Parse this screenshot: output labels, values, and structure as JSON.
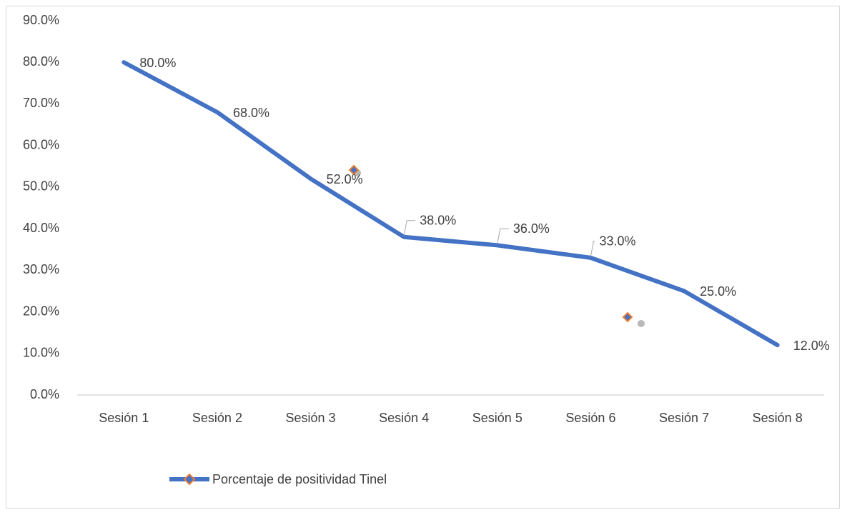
{
  "chart_data": {
    "type": "line",
    "categories": [
      "Sesión 1",
      "Sesión 2",
      "Sesión 3",
      "Sesión 4",
      "Sesión 5",
      "Sesión 6",
      "Sesión 7",
      "Sesión 8"
    ],
    "series": [
      {
        "name": "Porcentaje de positividad Tinel",
        "color": "#4472c4",
        "values": [
          80,
          68,
          52,
          38,
          36,
          33,
          25,
          12
        ],
        "value_labels": [
          "80.0%",
          "68.0%",
          "52.0%",
          "38.0%",
          "36.0%",
          "33.0%",
          "25.0%",
          "12.0%"
        ]
      }
    ],
    "ylim": [
      0,
      90
    ],
    "yticks": [
      {
        "value": 0,
        "label": "0.0%"
      },
      {
        "value": 10,
        "label": "10.0%"
      },
      {
        "value": 20,
        "label": "20.0%"
      },
      {
        "value": 30,
        "label": "30.0%"
      },
      {
        "value": 40,
        "label": "40.0%"
      },
      {
        "value": 50,
        "label": "50.0%"
      },
      {
        "value": 60,
        "label": "60.0%"
      },
      {
        "value": 70,
        "label": "70.0%"
      },
      {
        "value": 80,
        "label": "80.0%"
      },
      {
        "value": 90,
        "label": "90.0%"
      }
    ],
    "grid": false,
    "legend": "bottom"
  }
}
